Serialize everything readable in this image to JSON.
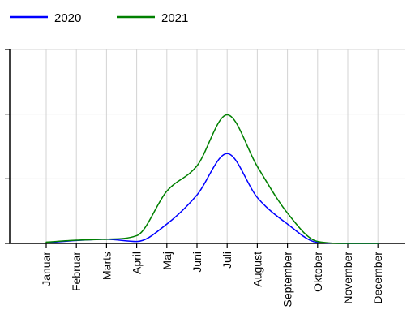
{
  "chart_data": {
    "type": "line",
    "title": "",
    "xlabel": "",
    "ylabel": "",
    "categories": [
      "Januar",
      "Februar",
      "Marts",
      "April",
      "Maj",
      "Juni",
      "Juli",
      "August",
      "September",
      "Oktober",
      "November",
      "December"
    ],
    "series": [
      {
        "name": "2020",
        "color": "#0000ff",
        "values": [
          1.0,
          4.5,
          6.5,
          3.0,
          30.0,
          75.0,
          139.0,
          71.0,
          30.0,
          1.5,
          0.0,
          0.0
        ]
      },
      {
        "name": "2021",
        "color": "#008000",
        "values": [
          2.0,
          5.0,
          6.5,
          12.0,
          81.0,
          120.0,
          199.0,
          119.0,
          47.0,
          3.0,
          0.0,
          0.0
        ]
      }
    ],
    "ylim": [
      0,
      300
    ],
    "yticks": [
      0,
      100,
      200,
      300
    ],
    "ytick_labels_visible": false,
    "grid": true,
    "legend_position": "top-left",
    "line_style": "smooth"
  }
}
